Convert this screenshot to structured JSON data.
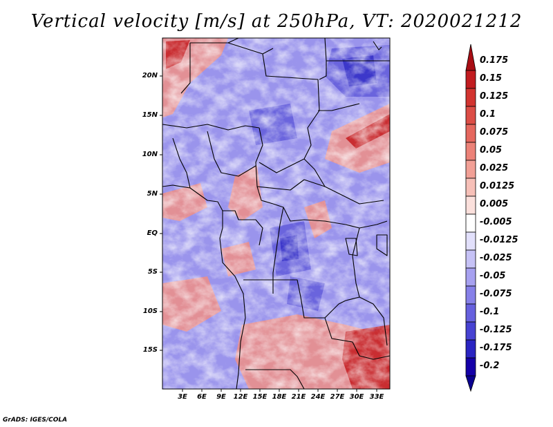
{
  "title": "Vertical velocity [m/s] at 250hPa, VT: 2020021212",
  "map": {
    "variable": "Vertical velocity",
    "units": "m/s",
    "level": "250hPa",
    "valid_time": "2020021212",
    "lat_labels": [
      "20N",
      "15N",
      "10N",
      "5N",
      "EQ",
      "5S",
      "10S",
      "15S"
    ],
    "lon_labels": [
      "3E",
      "6E",
      "9E",
      "12E",
      "15E",
      "18E",
      "21E",
      "24E",
      "27E",
      "30E",
      "33E"
    ]
  },
  "colorbar": {
    "labels": [
      "0.175",
      "0.15",
      "0.125",
      "0.1",
      "0.075",
      "0.05",
      "0.025",
      "0.0125",
      "0.005",
      "-0.005",
      "-0.0125",
      "-0.025",
      "-0.05",
      "-0.075",
      "-0.1",
      "-0.125",
      "-0.175",
      "-0.2"
    ],
    "colors": [
      "#a80d14",
      "#c21c20",
      "#d23430",
      "#dc4d46",
      "#e5675e",
      "#ec8278",
      "#f2a096",
      "#f7c0b8",
      "#fbe0dc",
      "#ffffff",
      "#e2e0fb",
      "#c6c2f6",
      "#a7a1f0",
      "#8680e8",
      "#6660de",
      "#4742d2",
      "#2a24c2",
      "#1500a8",
      "#0a0090"
    ]
  },
  "credit": "GrADS: IGES/COLA"
}
